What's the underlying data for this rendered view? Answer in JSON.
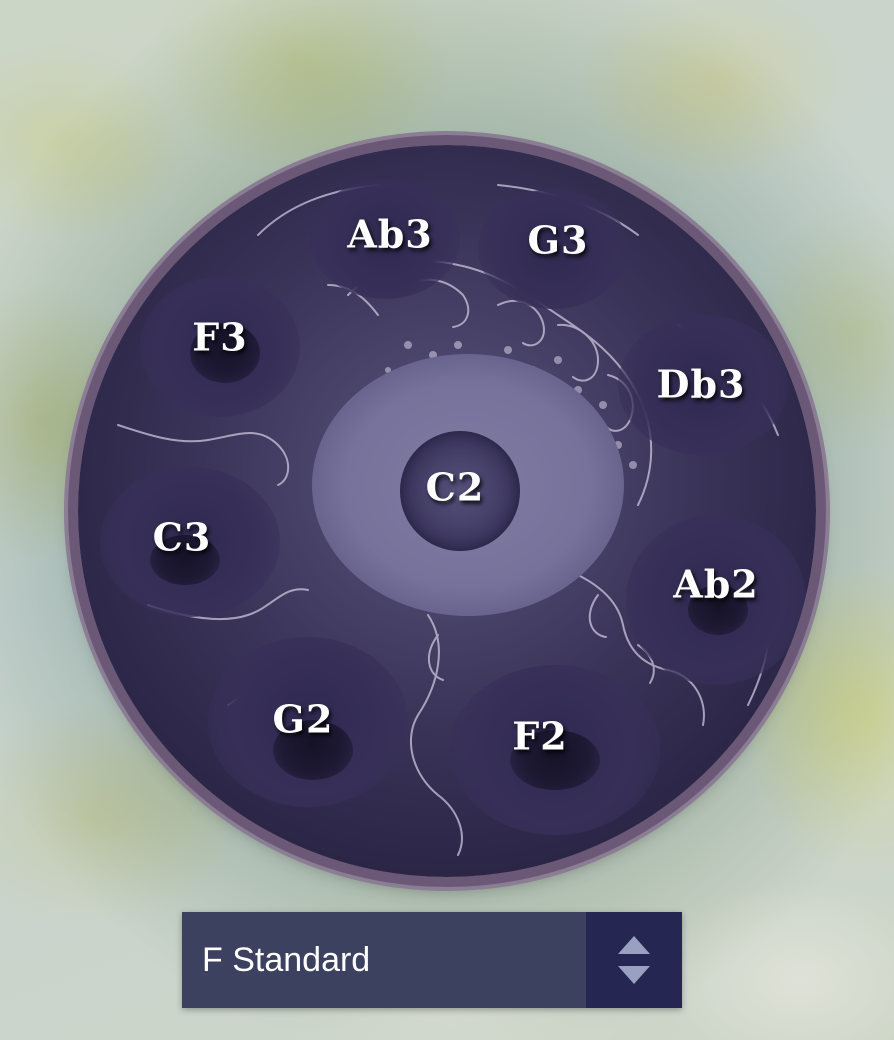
{
  "instrument": {
    "center_note": "C2",
    "notes": [
      {
        "id": "ab3",
        "label": "Ab3"
      },
      {
        "id": "g3",
        "label": "G3"
      },
      {
        "id": "f3",
        "label": "F3"
      },
      {
        "id": "db3",
        "label": "Db3"
      },
      {
        "id": "c3",
        "label": "C3"
      },
      {
        "id": "ab2",
        "label": "Ab2"
      },
      {
        "id": "g2",
        "label": "G2"
      },
      {
        "id": "f2",
        "label": "F2"
      }
    ]
  },
  "scale_selector": {
    "selected": "F Standard",
    "icon": "chevron-up-down-icon"
  },
  "colors": {
    "drum_body": "#3a3459",
    "selector_bg": "#3c4160",
    "selector_arrows_bg": "#252752",
    "note_text": "#ffffff"
  }
}
